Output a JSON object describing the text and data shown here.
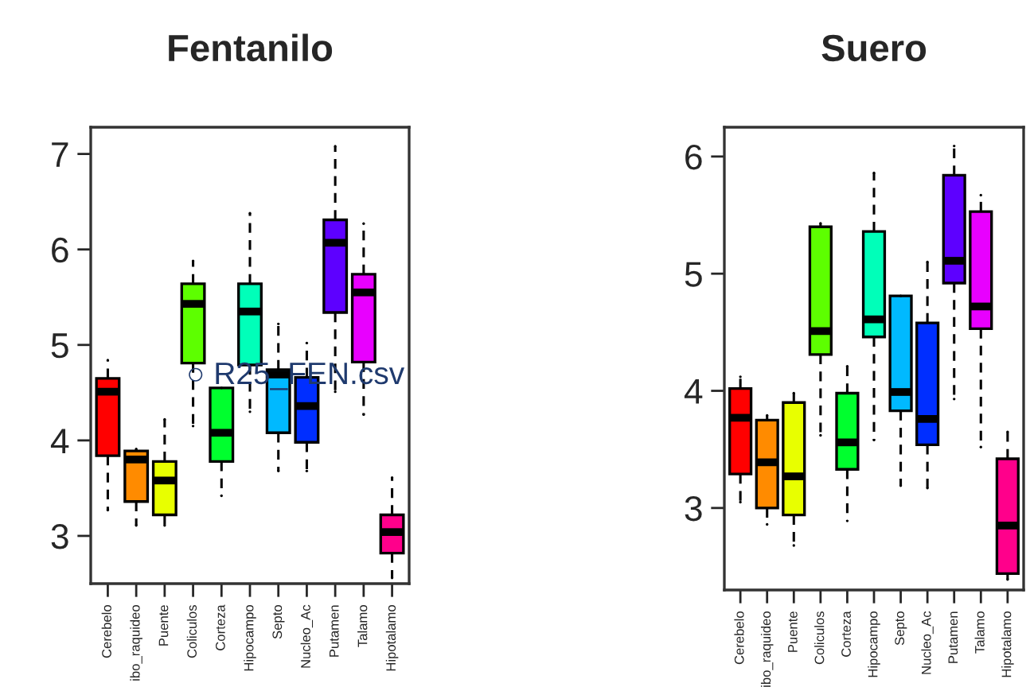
{
  "chart_data": [
    {
      "type": "box",
      "title": "Fentanilo",
      "categories": [
        "Cerebelo",
        "ibo_raquideo",
        "Puente",
        "Coliculos",
        "Corteza",
        "Hipocampo",
        "Septo",
        "Nucleo_Ac",
        "Putamen",
        "Talamo",
        "Hipotalamo"
      ],
      "colors": [
        "#ff0000",
        "#ff8b00",
        "#e8ff00",
        "#5dff00",
        "#00ff2e",
        "#00ffb9",
        "#00b9ff",
        "#002eff",
        "#5d00ff",
        "#e800ff",
        "#ff008b"
      ],
      "boxes": [
        {
          "low": 3.27,
          "q1": 3.84,
          "median": 4.51,
          "q3": 4.65,
          "high": 4.84
        },
        {
          "low": 3.11,
          "q1": 3.36,
          "median": 3.8,
          "q3": 3.89,
          "high": 3.91
        },
        {
          "low": 3.11,
          "q1": 3.22,
          "median": 3.58,
          "q3": 3.78,
          "high": 4.22
        },
        {
          "low": 4.15,
          "q1": 4.81,
          "median": 5.43,
          "q3": 5.64,
          "high": 5.88
        },
        {
          "low": 3.42,
          "q1": 3.78,
          "median": 4.08,
          "q3": 4.55,
          "high": 4.55
        },
        {
          "low": 4.3,
          "q1": 4.79,
          "median": 5.35,
          "q3": 5.64,
          "high": 6.38
        },
        {
          "low": 3.68,
          "q1": 4.08,
          "median": 4.69,
          "q3": 4.74,
          "high": 5.22
        },
        {
          "low": 3.68,
          "q1": 3.98,
          "median": 4.36,
          "q3": 4.66,
          "high": 5.02
        },
        {
          "low": 4.51,
          "q1": 5.34,
          "median": 6.07,
          "q3": 6.31,
          "high": 7.08
        },
        {
          "low": 4.27,
          "q1": 4.82,
          "median": 5.55,
          "q3": 5.74,
          "high": 6.27
        },
        {
          "low": 2.56,
          "q1": 2.82,
          "median": 3.04,
          "q3": 3.22,
          "high": 3.61
        }
      ],
      "ylim": [
        2.5,
        7.28
      ],
      "yticks": [
        3,
        4,
        5,
        6,
        7
      ],
      "annotations": [
        "○ R25_FEN.csv"
      ]
    },
    {
      "type": "box",
      "title": "Suero",
      "categories": [
        "Cerebelo",
        "ibo_raquideo",
        "Puente",
        "Coliculos",
        "Corteza",
        "Hipocampo",
        "Septo",
        "Nucleo_Ac",
        "Putamen",
        "Talamo",
        "Hipotalamo"
      ],
      "colors": [
        "#ff0000",
        "#ff8b00",
        "#e8ff00",
        "#5dff00",
        "#00ff2e",
        "#00ffb9",
        "#00b9ff",
        "#002eff",
        "#5d00ff",
        "#e800ff",
        "#ff008b"
      ],
      "boxes": [
        {
          "low": 3.05,
          "q1": 3.29,
          "median": 3.77,
          "q3": 4.02,
          "high": 4.12
        },
        {
          "low": 2.86,
          "q1": 3.0,
          "median": 3.39,
          "q3": 3.75,
          "high": 3.79
        },
        {
          "low": 2.68,
          "q1": 2.94,
          "median": 3.27,
          "q3": 3.9,
          "high": 3.98
        },
        {
          "low": 3.62,
          "q1": 4.31,
          "median": 4.51,
          "q3": 5.4,
          "high": 5.43
        },
        {
          "low": 2.89,
          "q1": 3.33,
          "median": 3.56,
          "q3": 3.98,
          "high": 4.21
        },
        {
          "low": 3.58,
          "q1": 4.46,
          "median": 4.61,
          "q3": 5.36,
          "high": 5.86
        },
        {
          "low": 3.19,
          "q1": 3.83,
          "median": 3.99,
          "q3": 4.81,
          "high": 4.81
        },
        {
          "low": 3.17,
          "q1": 3.54,
          "median": 3.76,
          "q3": 4.58,
          "high": 5.1
        },
        {
          "low": 3.93,
          "q1": 4.92,
          "median": 5.11,
          "q3": 5.84,
          "high": 6.09
        },
        {
          "low": 3.52,
          "q1": 4.53,
          "median": 4.72,
          "q3": 5.53,
          "high": 5.67
        },
        {
          "low": 2.39,
          "q1": 2.44,
          "median": 2.85,
          "q3": 3.42,
          "high": 3.65
        }
      ],
      "ylim": [
        2.3,
        6.25
      ],
      "yticks": [
        3,
        4,
        5,
        6
      ]
    }
  ]
}
